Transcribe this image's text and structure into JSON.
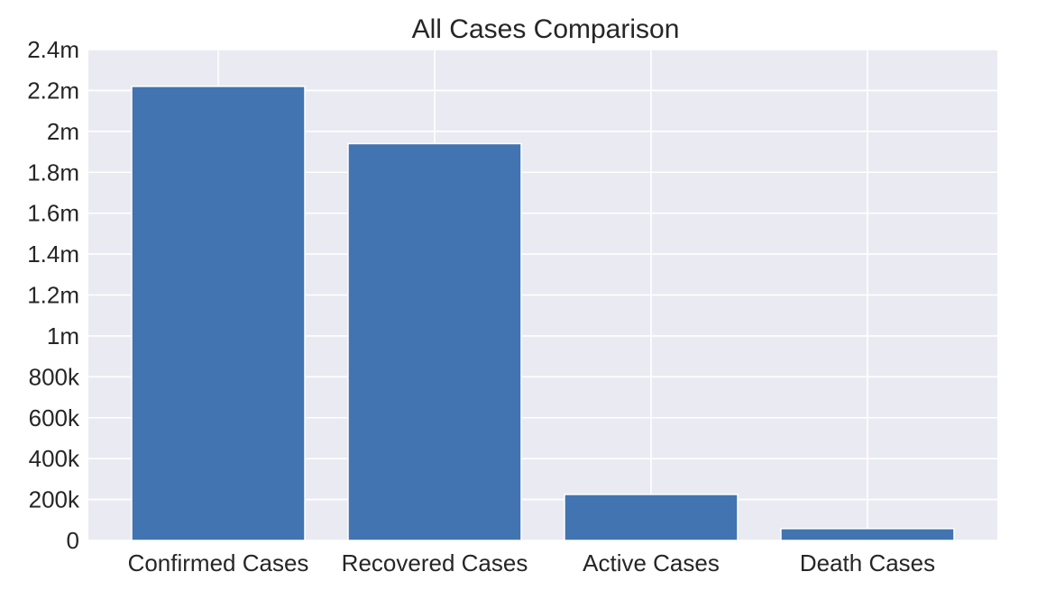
{
  "chart_data": {
    "type": "bar",
    "title": "All Cases Comparison",
    "xlabel": "",
    "ylabel": "",
    "categories": [
      "Confirmed Cases",
      "Recovered Cases",
      "Active Cases",
      "Death Cases"
    ],
    "values": [
      2220000,
      1940000,
      225000,
      58000
    ],
    "ylim": [
      0,
      2400000
    ],
    "yticks": [
      0,
      200000,
      400000,
      600000,
      800000,
      1000000,
      1200000,
      1400000,
      1600000,
      1800000,
      2000000,
      2200000,
      2400000
    ],
    "ytick_labels": [
      "0",
      "200k",
      "400k",
      "600k",
      "800k",
      "1m",
      "1.2m",
      "1.4m",
      "1.6m",
      "1.8m",
      "2m",
      "2.2m",
      "2.4m"
    ],
    "grid": true,
    "colors": {
      "bar": "#4174b0",
      "plot_background": "#eaeaf2",
      "grid": "#ffffff",
      "text": "#262626"
    }
  }
}
